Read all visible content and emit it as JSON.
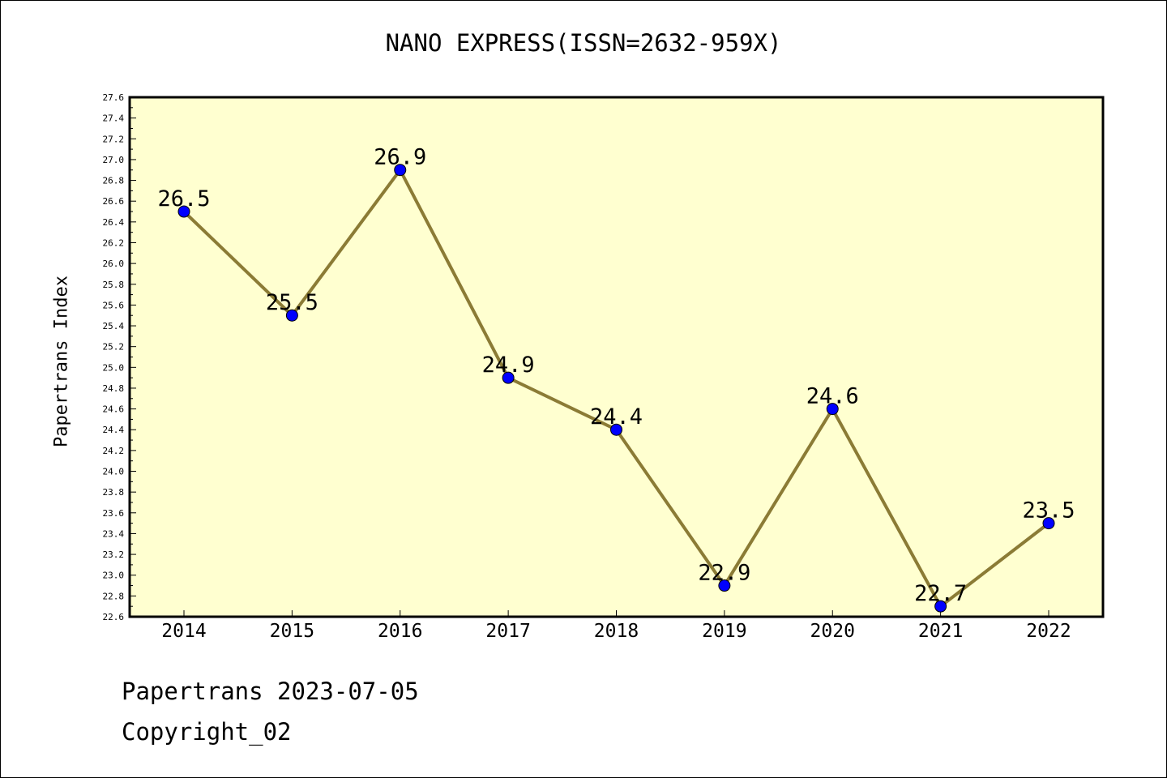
{
  "chart_data": {
    "type": "line",
    "title": "NANO EXPRESS(ISSN=2632-959X)",
    "ylabel": "Papertrans Index",
    "xlabel": "",
    "categories": [
      "2014",
      "2015",
      "2016",
      "2017",
      "2018",
      "2019",
      "2020",
      "2021",
      "2022"
    ],
    "values": [
      26.5,
      25.5,
      26.9,
      24.9,
      24.4,
      22.9,
      24.6,
      22.7,
      23.5
    ],
    "data_labels": [
      "26.5",
      "25.5",
      "26.9",
      "24.9",
      "24.4",
      "22.9",
      "24.6",
      "22.7",
      "23.5"
    ],
    "ylim": [
      22.6,
      27.6
    ],
    "ytick_step": 0.2,
    "grid": false,
    "colors": {
      "plot_bg": "#ffffd0",
      "line": "#8b7b35",
      "marker": "#0000ff"
    }
  },
  "footer": {
    "date_text": "Papertrans 2023-07-05",
    "copyright_text": "Copyright_02"
  }
}
